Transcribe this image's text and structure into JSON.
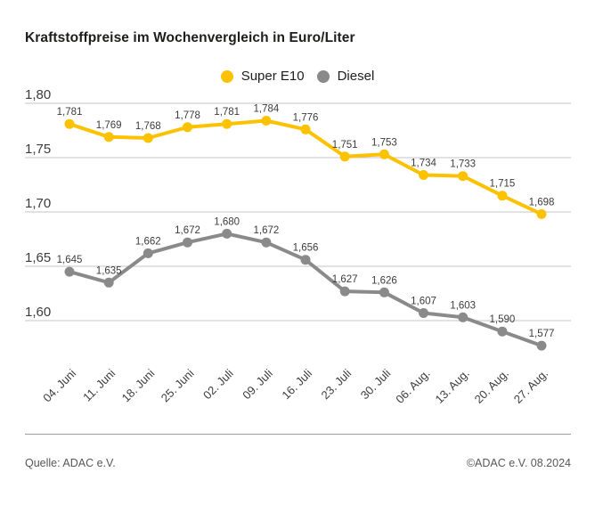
{
  "title": "Kraftstoffpreise im Wochenvergleich in Euro/Liter",
  "legend": {
    "items": [
      {
        "label": "Super E10",
        "color": "#FCC200"
      },
      {
        "label": "Diesel",
        "color": "#8A8A8A"
      }
    ]
  },
  "chart_data": {
    "type": "line",
    "title": "Kraftstoffpreise im Wochenvergleich in Euro/Liter",
    "unit": "Euro/Liter",
    "grid": true,
    "legend_position": "top-center",
    "ylim": [
      1.56,
      1.815
    ],
    "categories": [
      "04. Juni",
      "11. Juni",
      "18. Juni",
      "25. Juni",
      "02. Juli",
      "09. Juli",
      "16. Juli",
      "23. Juli",
      "30. Juli",
      "06. Aug.",
      "13. Aug.",
      "20. Aug.",
      "27. Aug."
    ],
    "yticks": [
      {
        "value": 1.8,
        "label": "1,80"
      },
      {
        "value": 1.75,
        "label": "1,75"
      },
      {
        "value": 1.7,
        "label": "1,70"
      },
      {
        "value": 1.65,
        "label": "1,65"
      },
      {
        "value": 1.6,
        "label": "1,60"
      }
    ],
    "series": [
      {
        "name": "Super E10",
        "color": "#FCC200",
        "values": [
          1.781,
          1.769,
          1.768,
          1.778,
          1.781,
          1.784,
          1.776,
          1.751,
          1.753,
          1.734,
          1.733,
          1.715,
          1.698
        ],
        "labels": [
          "1,781",
          "1,769",
          "1,768",
          "1,778",
          "1,781",
          "1,784",
          "1,776",
          "1,751",
          "1,753",
          "1,734",
          "1,733",
          "1,715",
          "1,698"
        ]
      },
      {
        "name": "Diesel",
        "color": "#8A8A8A",
        "values": [
          1.645,
          1.635,
          1.662,
          1.672,
          1.68,
          1.672,
          1.656,
          1.627,
          1.626,
          1.607,
          1.603,
          1.59,
          1.577
        ],
        "labels": [
          "1,645",
          "1,635",
          "1,662",
          "1,672",
          "1,680",
          "1,672",
          "1,656",
          "1,627",
          "1,626",
          "1,607",
          "1,603",
          "1,590",
          "1,577"
        ]
      }
    ]
  },
  "footer": {
    "source": "Quelle: ADAC e.V.",
    "copyright": "©ADAC e.V. 08.2024"
  }
}
